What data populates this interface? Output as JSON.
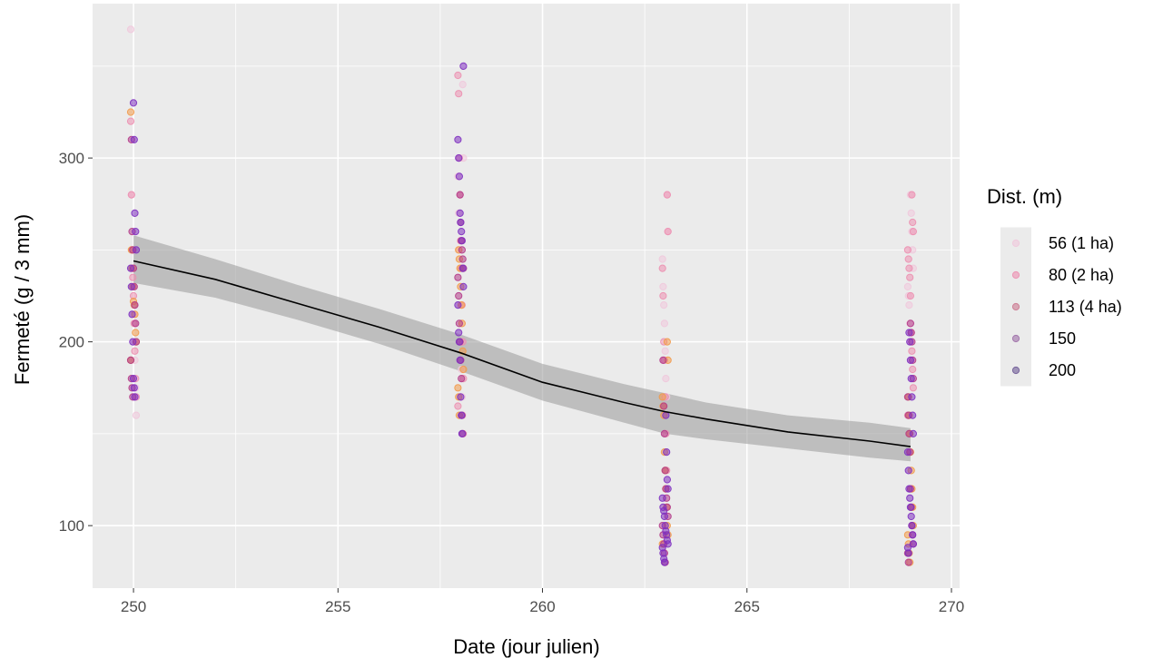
{
  "chart_data": {
    "type": "scatter",
    "title": "",
    "xlabel": "Date (jour julien)",
    "ylabel": "Fermeté (g / 3 mm)",
    "xlim": [
      249,
      270.2
    ],
    "ylim": [
      66,
      384
    ],
    "x_ticks": [
      250,
      255,
      260,
      265,
      270
    ],
    "y_ticks": [
      100,
      200,
      300
    ],
    "grid": true,
    "legend": {
      "title": "Dist. (m)",
      "position": "right",
      "entries": [
        {
          "label": "56  (1 ha)",
          "color": "#F0C8DC"
        },
        {
          "label": "80  (2 ha)",
          "color": "#EC8FB0"
        },
        {
          "label": "113 (4 ha)",
          "color": "#CC7890"
        },
        {
          "label": "150",
          "color": "#9E6FA8"
        },
        {
          "label": "200",
          "color": "#6E5A96"
        }
      ]
    },
    "series": [
      {
        "x": 250,
        "color": "#F0C8DC",
        "values": [
          370,
          280,
          240,
          230,
          215,
          200,
          190,
          175,
          160
        ]
      },
      {
        "x": 250,
        "color": "#EC8FB0",
        "values": [
          320,
          280,
          250,
          235,
          225,
          210,
          195,
          180,
          170
        ]
      },
      {
        "x": 250,
        "color": "#F29A4A",
        "values": [
          325,
          250,
          240,
          230,
          222,
          220,
          215,
          205,
          200,
          190
        ]
      },
      {
        "x": 250,
        "color": "#B23A88",
        "values": [
          310,
          260,
          250,
          240,
          230,
          220,
          210,
          200,
          190,
          180,
          175,
          170
        ]
      },
      {
        "x": 250,
        "color": "#7E2FC0",
        "values": [
          330,
          310,
          270,
          260,
          250,
          240,
          230,
          215,
          200,
          180,
          175,
          170
        ]
      },
      {
        "x": 258,
        "color": "#F0C8DC",
        "values": [
          340,
          300,
          290,
          270,
          250,
          220,
          200,
          185,
          170,
          160,
          150
        ]
      },
      {
        "x": 258,
        "color": "#EC8FB0",
        "values": [
          345,
          335,
          300,
          280,
          255,
          240,
          220,
          200,
          180,
          165
        ]
      },
      {
        "x": 258,
        "color": "#F29A4A",
        "values": [
          250,
          245,
          240,
          230,
          220,
          210,
          195,
          185,
          175,
          170,
          160
        ]
      },
      {
        "x": 258,
        "color": "#B23A88",
        "values": [
          280,
          265,
          255,
          250,
          245,
          240,
          235,
          225,
          210,
          200,
          190,
          180,
          160,
          150
        ]
      },
      {
        "x": 258,
        "color": "#7E2FC0",
        "values": [
          350,
          310,
          300,
          290,
          270,
          265,
          260,
          255,
          240,
          230,
          220,
          205,
          200,
          190,
          170,
          160,
          150
        ]
      },
      {
        "x": 263,
        "color": "#F0C8DC",
        "values": [
          280,
          260,
          245,
          230,
          220,
          210,
          195,
          180,
          170
        ]
      },
      {
        "x": 263,
        "color": "#EC8FB0",
        "values": [
          280,
          260,
          240,
          225,
          200,
          190,
          170,
          150,
          130
        ]
      },
      {
        "x": 263,
        "color": "#F29A4A",
        "values": [
          200,
          190,
          170,
          165,
          160,
          140,
          130,
          120,
          110,
          100,
          95,
          90
        ]
      },
      {
        "x": 263,
        "color": "#B23A88",
        "values": [
          190,
          165,
          150,
          130,
          120,
          115,
          110,
          105,
          100,
          95,
          90,
          85,
          80
        ]
      },
      {
        "x": 263,
        "color": "#7E2FC0",
        "values": [
          160,
          140,
          125,
          120,
          115,
          110,
          108,
          105,
          100,
          97,
          95,
          92,
          90,
          88,
          85,
          82,
          80
        ]
      },
      {
        "x": 269,
        "color": "#F0C8DC",
        "values": [
          280,
          270,
          260,
          250,
          240,
          230,
          225,
          220,
          210,
          200,
          190
        ]
      },
      {
        "x": 269,
        "color": "#EC8FB0",
        "values": [
          280,
          265,
          260,
          250,
          245,
          240,
          235,
          225,
          205,
          195,
          185,
          175,
          160
        ]
      },
      {
        "x": 269,
        "color": "#F29A4A",
        "values": [
          170,
          160,
          150,
          140,
          130,
          120,
          110,
          100,
          95,
          90,
          85,
          80
        ]
      },
      {
        "x": 269,
        "color": "#B23A88",
        "values": [
          210,
          205,
          200,
          190,
          180,
          170,
          160,
          150,
          140,
          120,
          110,
          100,
          95,
          90,
          85,
          80
        ]
      },
      {
        "x": 269,
        "color": "#7E2FC0",
        "values": [
          205,
          200,
          190,
          180,
          170,
          160,
          150,
          140,
          130,
          120,
          115,
          110,
          105,
          100,
          95,
          90,
          88,
          85
        ]
      }
    ],
    "trend": {
      "x": [
        250,
        252,
        254,
        256,
        258,
        260,
        262,
        263,
        264,
        266,
        268,
        269
      ],
      "y": [
        244,
        234,
        221,
        208,
        194,
        178,
        167,
        162,
        158,
        151,
        146,
        143
      ],
      "lower": [
        232,
        224,
        212,
        199,
        184,
        168,
        156,
        150,
        147,
        142,
        137,
        135
      ],
      "upper": [
        258,
        245,
        231,
        218,
        204,
        188,
        177,
        172,
        167,
        160,
        156,
        153
      ]
    }
  }
}
